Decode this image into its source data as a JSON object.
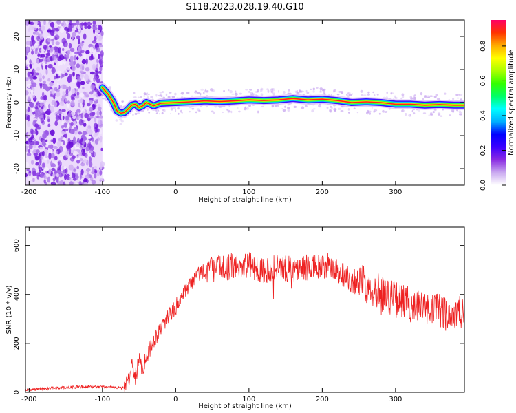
{
  "figure": {
    "title": "S118.2023.028.19.40.G10"
  },
  "chart_data": [
    {
      "type": "heatmap",
      "xlabel": "Height of straight line (km)",
      "ylabel": "Frequency (Hz)",
      "xlim": [
        -205,
        394
      ],
      "ylim": [
        -25,
        25
      ],
      "xticks": [
        -200,
        -100,
        0,
        100,
        200,
        300
      ],
      "yticks": [
        -20,
        -10,
        0,
        10,
        20
      ],
      "noise_region_x": [
        -205,
        -100
      ],
      "ridge": {
        "x": [
          -100,
          -92,
          -85,
          -80,
          -75,
          -70,
          -65,
          -60,
          -55,
          -50,
          -45,
          -40,
          -35,
          -30,
          -20,
          0,
          20,
          40,
          60,
          80,
          100,
          120,
          140,
          160,
          180,
          200,
          220,
          240,
          260,
          280,
          300,
          320,
          340,
          360,
          380,
          394
        ],
        "y": [
          4.5,
          2.5,
          0.0,
          -2.5,
          -3.2,
          -3.0,
          -2.0,
          -0.8,
          -0.5,
          -1.5,
          -1.0,
          0.0,
          -0.5,
          -1.0,
          -0.2,
          0.0,
          0.2,
          0.5,
          0.3,
          0.5,
          0.8,
          0.6,
          0.8,
          1.2,
          0.8,
          1.0,
          0.6,
          0.0,
          0.2,
          0.0,
          -0.5,
          -0.5,
          -0.8,
          -0.6,
          -0.8,
          -0.8
        ]
      },
      "colorbar": {
        "label": "Normalized spectral amplitude",
        "range": [
          0,
          0.95
        ],
        "ticks": [
          "0.0",
          "0.2",
          "0.4",
          "0.6",
          "0.8"
        ],
        "colors": [
          "#ffffff",
          "#c9a8f0",
          "#8a2be2",
          "#3b00ff",
          "#0000ff",
          "#00b0ff",
          "#00ffff",
          "#00ff66",
          "#33ff00",
          "#aaff00",
          "#ffff00",
          "#ffaa00",
          "#ff3300",
          "#ff0066"
        ]
      }
    },
    {
      "type": "line",
      "xlabel": "Height of straight line (km)",
      "ylabel": "SNR (10 * v/v)",
      "xlim": [
        -205,
        394
      ],
      "ylim": [
        0,
        675
      ],
      "xticks": [
        -200,
        -100,
        0,
        100,
        200,
        300
      ],
      "yticks": [
        0,
        200,
        400,
        600
      ],
      "color": "#ee2222",
      "series": [
        {
          "x": [
            -205,
            -180,
            -150,
            -120,
            -100,
            -80,
            -70,
            -65,
            -60,
            -55,
            -50,
            -45,
            -40,
            -30,
            -20,
            -10,
            0,
            10,
            20,
            30,
            40,
            60,
            80,
            100,
            120,
            140,
            160,
            180,
            200,
            220,
            240,
            260,
            280,
            300,
            320,
            340,
            360,
            380,
            394
          ],
          "y": [
            10,
            15,
            20,
            22,
            22,
            20,
            18,
            40,
            120,
            60,
            130,
            100,
            150,
            210,
            270,
            310,
            350,
            390,
            440,
            480,
            500,
            510,
            515,
            520,
            500,
            510,
            500,
            510,
            510,
            500,
            460,
            440,
            410,
            380,
            360,
            340,
            330,
            320,
            320
          ]
        }
      ]
    }
  ]
}
